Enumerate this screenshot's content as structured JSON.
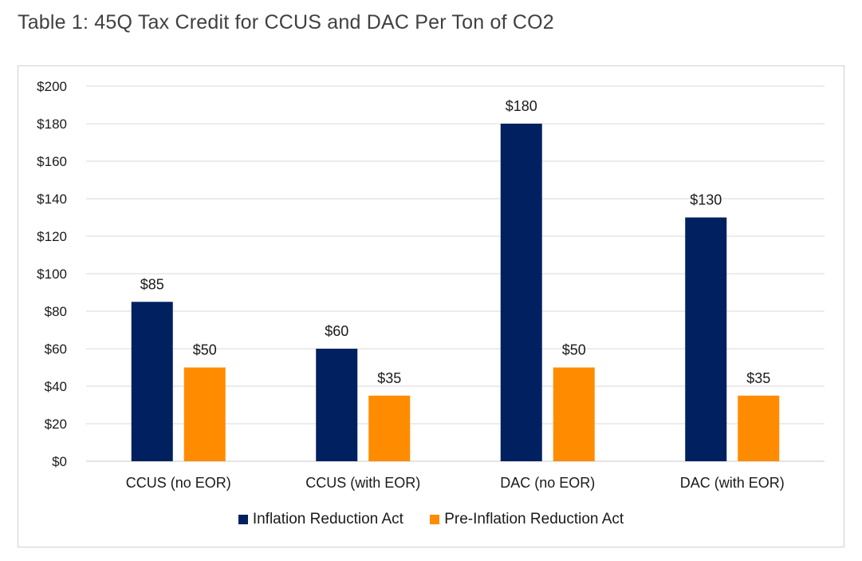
{
  "page": {
    "title": "Table 1: 45Q Tax Credit for CCUS and DAC Per Ton of CO2"
  },
  "chart_data": {
    "type": "bar",
    "title": "",
    "xlabel": "",
    "ylabel": "",
    "categories": [
      "CCUS (no EOR)",
      "CCUS (with EOR)",
      "DAC (no EOR)",
      "DAC (with EOR)"
    ],
    "series": [
      {
        "name": "Inflation Reduction Act",
        "values": [
          85,
          60,
          180,
          130
        ],
        "color": "#002060",
        "labels": [
          "$85",
          "$60",
          "$180",
          "$130"
        ]
      },
      {
        "name": "Pre-Inflation Reduction Act",
        "values": [
          50,
          35,
          50,
          35
        ],
        "color": "#FF8C00",
        "labels": [
          "$50",
          "$35",
          "$50",
          "$35"
        ]
      }
    ],
    "ylim": [
      0,
      200
    ],
    "yticks": [
      0,
      20,
      40,
      60,
      80,
      100,
      120,
      140,
      160,
      180,
      200
    ],
    "ytick_labels": [
      "$0",
      "$20",
      "$40",
      "$60",
      "$80",
      "$100",
      "$120",
      "$140",
      "$160",
      "$180",
      "$200"
    ],
    "grid": true,
    "legend_position": "bottom"
  }
}
